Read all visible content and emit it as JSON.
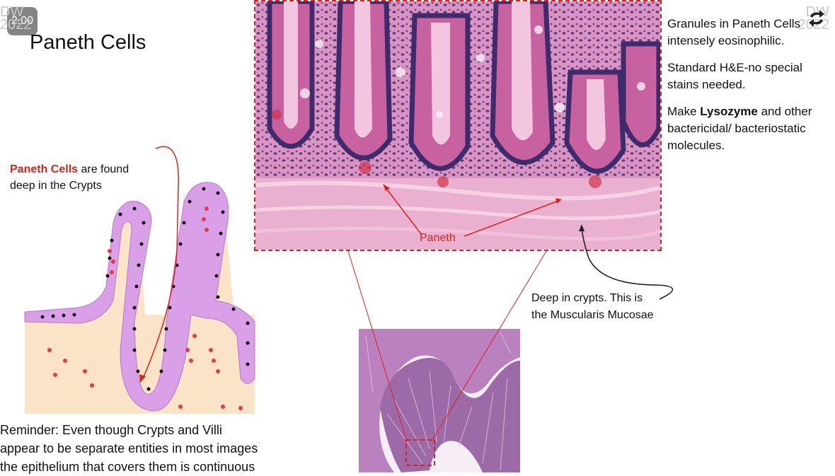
{
  "player": {
    "speed": "2.00"
  },
  "watermark": {
    "left_top": "DW",
    "left_bottom": "2022",
    "right_top": "DW",
    "right_bottom": "2022"
  },
  "slide": {
    "title": "Paneth Cells",
    "side_notes": {
      "line1a": "Granules in Paneth Cells",
      "line1b": "intensely eosinophilic.",
      "line2a": "Standard H&E-no special",
      "line2b": "stains needed.",
      "line3_pre": "Make ",
      "line3_bold": "Lysozyme",
      "line3_post": " and other",
      "line3b": "bactericidal/ bacteriostatic",
      "line3c": "molecules."
    },
    "found_note": {
      "red": "Paneth Cells",
      "rest": " are found",
      "line2": "deep in the Crypts"
    },
    "histo_label": "Paneth",
    "crypt_note": {
      "line1": "Deep in crypts.  This is",
      "line2": "the Muscularis Mucosae"
    },
    "reminder": {
      "line1": "Reminder: Even though Crypts and Villi",
      "line2": "appear to be separate entities in most images",
      "line3": "the epithelium that covers them is continuous"
    }
  },
  "colors": {
    "accent_red": "#e0211b",
    "epithelium": "#d9a0e8",
    "lamina": "#fbe3c8"
  }
}
